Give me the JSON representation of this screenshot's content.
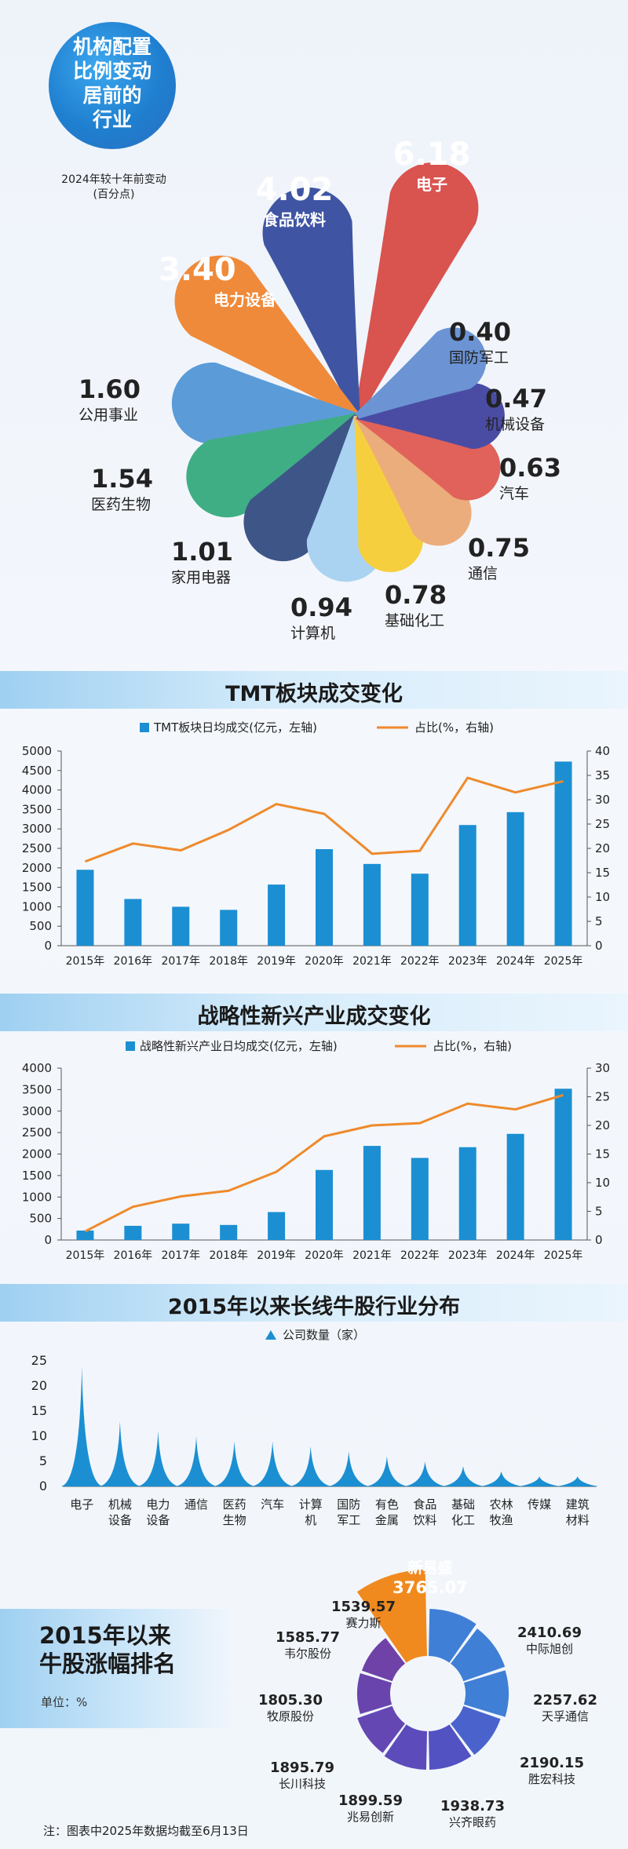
{
  "chart_data": [
    {
      "type": "radial",
      "title": "机构配置比例变动居前的行业",
      "subtitle": "2024年较十年前变动(百分点)",
      "categories": [
        "电子",
        "食品饮料",
        "电力设备",
        "公用事业",
        "医药生物",
        "家用电器",
        "计算机",
        "基础化工",
        "通信",
        "汽车",
        "机械设备",
        "国防军工"
      ],
      "values": [
        6.18,
        4.02,
        3.4,
        1.6,
        1.54,
        1.01,
        0.94,
        0.78,
        0.75,
        0.63,
        0.47,
        0.4
      ],
      "colors": [
        "#d9534f",
        "#3f55a3",
        "#ef8a3a",
        "#5b9bd8",
        "#3fae84",
        "#3e5588",
        "#a9d3f0",
        "#f6cf3f",
        "#ebad7b",
        "#e0625a",
        "#4a4ca4",
        "#6c94d4"
      ]
    },
    {
      "type": "bar+line",
      "title": "TMT板块成交变化",
      "categories": [
        "2015年",
        "2016年",
        "2017年",
        "2018年",
        "2019年",
        "2020年",
        "2021年",
        "2022年",
        "2023年",
        "2024年",
        "2025年"
      ],
      "series": [
        {
          "name": "TMT板块日均成交(亿元，左轴)",
          "type": "bar",
          "axis": "left",
          "values": [
            1950,
            1200,
            1000,
            920,
            1570,
            2480,
            2100,
            1850,
            3100,
            3430,
            4730
          ]
        },
        {
          "name": "占比(%，右轴)",
          "type": "line",
          "axis": "right",
          "values": [
            17.3,
            21.0,
            19.6,
            23.8,
            29.1,
            27.1,
            18.9,
            19.5,
            34.5,
            31.5,
            33.8
          ]
        }
      ],
      "ylim_left": [
        0,
        5000
      ],
      "yticks_left": [
        0,
        500,
        1000,
        1500,
        2000,
        2500,
        3000,
        3500,
        4000,
        4500,
        5000
      ],
      "ylim_right": [
        0,
        40
      ],
      "yticks_right": [
        0,
        5,
        10,
        15,
        20,
        25,
        30,
        35,
        40
      ]
    },
    {
      "type": "bar+line",
      "title": "战略性新兴产业成交变化",
      "categories": [
        "2015年",
        "2016年",
        "2017年",
        "2018年",
        "2019年",
        "2020年",
        "2021年",
        "2022年",
        "2023年",
        "2024年",
        "2025年"
      ],
      "series": [
        {
          "name": "战略性新兴产业日均成交(亿元，左轴)",
          "type": "bar",
          "axis": "left",
          "values": [
            220,
            330,
            380,
            350,
            650,
            1630,
            2190,
            1910,
            2160,
            2470,
            3520
          ]
        },
        {
          "name": "占比(%，右轴)",
          "type": "line",
          "axis": "right",
          "values": [
            1.5,
            5.8,
            7.6,
            8.6,
            11.9,
            18.1,
            20.0,
            20.4,
            23.8,
            22.8,
            25.3
          ]
        }
      ],
      "ylim_left": [
        0,
        4000
      ],
      "yticks_left": [
        0,
        500,
        1000,
        1500,
        2000,
        2500,
        3000,
        3500,
        4000
      ],
      "ylim_right": [
        0,
        30
      ],
      "yticks_right": [
        0,
        5,
        10,
        15,
        20,
        25,
        30
      ]
    },
    {
      "type": "area",
      "title": "2015年以来长线牛股行业分布",
      "categories": [
        "电子",
        "机械\n设备",
        "电力\n设备",
        "通信",
        "医药\n生物",
        "汽车",
        "计算\n机",
        "国防\n军工",
        "有色\n金属",
        "食品\n饮料",
        "基础\n化工",
        "农林\n牧渔",
        "传媒",
        "建筑\n材料"
      ],
      "series": [
        {
          "name": "公司数量（家）",
          "values": [
            24,
            13,
            11,
            10,
            9,
            9,
            8,
            7,
            6,
            5,
            4,
            3,
            2,
            2
          ]
        }
      ],
      "ylim": [
        0,
        25
      ],
      "yticks": [
        0,
        5,
        10,
        15,
        20,
        25
      ]
    },
    {
      "type": "radial",
      "title": "2015年以来牛股涨幅排名",
      "unit": "单位：%",
      "categories": [
        "新易盛",
        "中际旭创",
        "天孚通信",
        "胜宏科技",
        "兴齐眼药",
        "兆易创新",
        "长川科技",
        "牧原股份",
        "韦尔股份",
        "赛力斯"
      ],
      "values": [
        3765.07,
        2410.69,
        2257.62,
        2190.15,
        1938.73,
        1899.59,
        1895.79,
        1805.3,
        1585.77,
        1539.57
      ],
      "labels": [
        "3765.07",
        "2410.69",
        "2257.62",
        "2190.15",
        "1938.73",
        "1899.59",
        "1895.79",
        "1805.30",
        "1585.77",
        "1539.57"
      ]
    }
  ],
  "header": {
    "title_lines": [
      "机构配置",
      "比例变动",
      "居前的",
      "行业"
    ],
    "subtitle_line1": "2024年较十年前变动",
    "subtitle_line2": "(百分点)"
  },
  "petal_labels": [
    {
      "value": "6.18",
      "name": "电子"
    },
    {
      "value": "4.02",
      "name": "食品饮料"
    },
    {
      "value": "3.40",
      "name": "电力设备"
    },
    {
      "value": "1.60",
      "name": "公用事业"
    },
    {
      "value": "1.54",
      "name": "医药生物"
    },
    {
      "value": "1.01",
      "name": "家用电器"
    },
    {
      "value": "0.94",
      "name": "计算机"
    },
    {
      "value": "0.78",
      "name": "基础化工"
    },
    {
      "value": "0.75",
      "name": "通信"
    },
    {
      "value": "0.63",
      "name": "汽车"
    },
    {
      "value": "0.47",
      "name": "机械设备"
    },
    {
      "value": "0.40",
      "name": "国防军工"
    }
  ],
  "tmt": {
    "title": "TMT板块成交变化",
    "legend_bar": "TMT板块日均成交(亿元，左轴)",
    "legend_line": "占比(%，右轴)"
  },
  "strategic": {
    "title": "战略性新兴产业成交变化",
    "legend_bar": "战略性新兴产业日均成交(亿元，左轴)",
    "legend_line": "占比(%，右轴)"
  },
  "longbull": {
    "title": "2015年以来长线牛股行业分布",
    "legend": "公司数量（家）"
  },
  "ranking": {
    "title_line1": "2015年以来",
    "title_line2": "牛股涨幅排名",
    "unit": "单位：%"
  },
  "footnote": "注：图表中2025年数据均截至6月13日",
  "colors": {
    "bar": "#1b8fd2",
    "line": "#ee8a2c",
    "area": "#1b8fd2",
    "ring_top": "#f08a1e",
    "ring_blue": "#3f7fd6",
    "ring_purple": "#6747b0"
  }
}
